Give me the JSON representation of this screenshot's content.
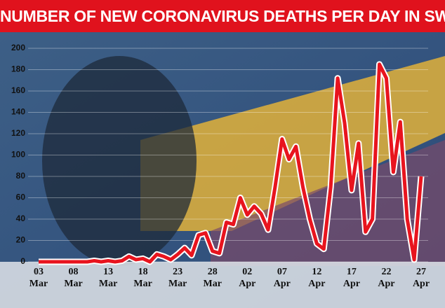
{
  "chart_data": {
    "type": "line",
    "title": "NUMBER OF NEW CORONAVIRUS DEATHS PER DAY IN SWEDEN",
    "categories": [
      "03\nMar",
      null,
      null,
      null,
      null,
      "08\nMar",
      null,
      null,
      null,
      null,
      "13\nMar",
      null,
      null,
      null,
      null,
      "18\nMar",
      null,
      null,
      null,
      null,
      "23\nMar",
      null,
      null,
      null,
      null,
      "28\nMar",
      null,
      null,
      null,
      null,
      "02\nApr",
      null,
      null,
      null,
      null,
      "07\nApr",
      null,
      null,
      null,
      null,
      "12\nApr",
      null,
      null,
      null,
      null,
      "17\nApr",
      null,
      null,
      null,
      null,
      "22\nApr",
      null,
      null,
      null,
      null,
      "27\nApr"
    ],
    "series": [
      {
        "color": "#e8141e",
        "values": [
          0,
          0,
          0,
          0,
          0,
          0,
          0,
          0,
          1,
          0,
          1,
          0,
          1,
          5,
          2,
          3,
          0,
          7,
          5,
          2,
          7,
          13,
          6,
          25,
          27,
          10,
          8,
          37,
          35,
          60,
          44,
          52,
          45,
          30,
          70,
          115,
          96,
          108,
          70,
          40,
          17,
          12,
          70,
          172,
          130,
          67,
          111,
          28,
          40,
          185,
          172,
          84,
          131,
          40,
          2,
          80
        ]
      }
    ],
    "ylim": [
      0,
      200
    ],
    "yticks": [
      0,
      20,
      40,
      60,
      80,
      100,
      120,
      140,
      160,
      180,
      200
    ],
    "grid": true
  }
}
